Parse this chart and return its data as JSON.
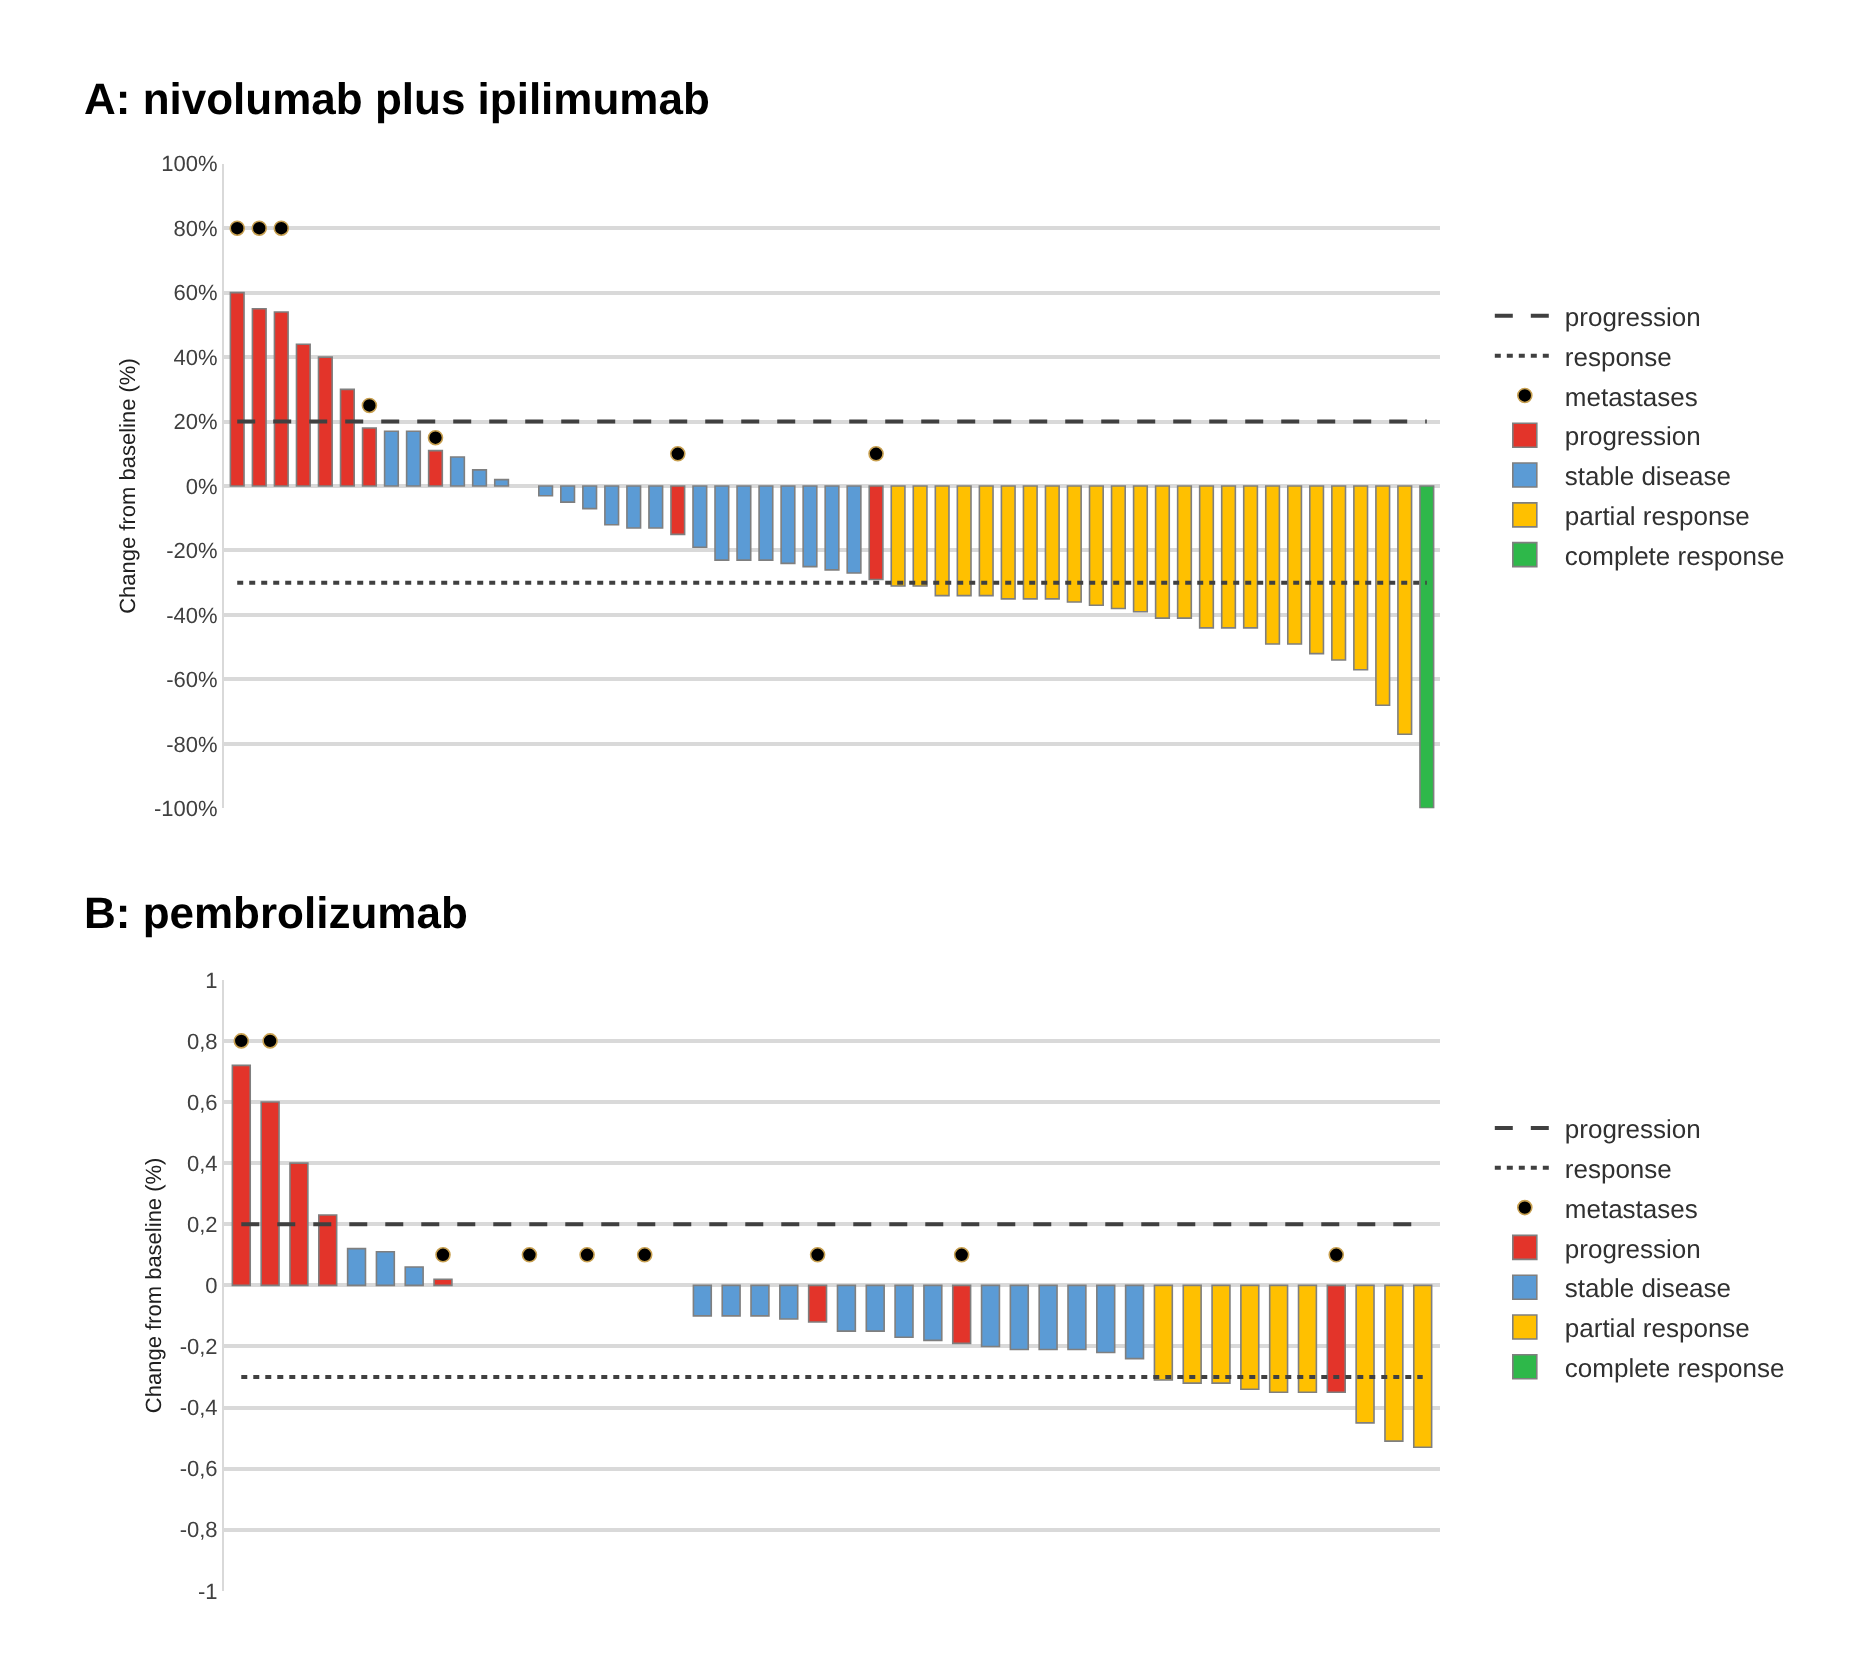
{
  "chart_data": [
    {
      "type": "bar",
      "title": "A: nivolumab plus ipilimumab",
      "ylabel": "Change from baseline (%)",
      "categories": [
        null,
        null,
        null,
        null,
        null,
        null,
        null,
        null,
        null,
        null,
        null,
        null,
        null,
        null,
        null,
        null,
        null,
        null,
        null,
        null,
        null,
        null,
        null,
        null,
        null,
        null,
        null,
        null,
        null,
        null,
        null,
        null,
        null,
        null,
        null,
        null,
        null,
        null,
        null,
        null,
        null,
        null,
        null,
        null,
        null,
        null,
        null,
        null,
        null,
        null,
        null,
        null,
        null,
        null,
        null
      ],
      "series": [
        {
          "name": "metastases",
          "type": "scatter",
          "color": "#000000",
          "values": [
            80,
            80,
            80,
            null,
            null,
            null,
            25,
            null,
            null,
            15,
            null,
            null,
            null,
            null,
            null,
            null,
            null,
            null,
            null,
            null,
            10,
            null,
            null,
            null,
            null,
            null,
            null,
            null,
            null,
            10,
            null,
            null,
            null,
            null,
            null,
            null,
            null,
            null,
            null,
            null,
            null,
            null,
            null,
            null,
            null,
            null,
            null,
            null,
            null,
            null,
            null,
            null,
            null,
            null,
            null
          ]
        },
        {
          "name": "progression",
          "color": "#e3342a",
          "values": [
            60,
            55,
            54,
            44,
            40,
            30,
            18,
            null,
            null,
            11,
            null,
            null,
            null,
            null,
            null,
            null,
            null,
            null,
            null,
            null,
            -15,
            null,
            null,
            null,
            null,
            null,
            null,
            null,
            null,
            -29,
            null,
            null,
            null,
            null,
            null,
            null,
            null,
            null,
            null,
            null,
            null,
            null,
            null,
            null,
            null,
            null,
            null,
            null,
            null,
            null,
            null,
            null,
            null,
            null,
            null
          ]
        },
        {
          "name": "stable disease",
          "color": "#5b9bd5",
          "values": [
            null,
            null,
            null,
            null,
            null,
            null,
            null,
            17,
            17,
            null,
            9,
            5,
            2,
            null,
            -3,
            -5,
            -7,
            -12,
            -13,
            -13,
            null,
            -19,
            -23,
            -23,
            -23,
            -24,
            -25,
            -26,
            -27,
            null,
            null,
            null,
            null,
            null,
            null,
            null,
            null,
            null,
            null,
            null,
            null,
            null,
            null,
            null,
            null,
            null,
            null,
            null,
            null,
            null,
            null,
            null,
            null,
            null,
            null
          ]
        },
        {
          "name": "partial response",
          "color": "#ffc000",
          "values": [
            null,
            null,
            null,
            null,
            null,
            null,
            null,
            null,
            null,
            null,
            null,
            null,
            null,
            null,
            null,
            null,
            null,
            null,
            null,
            null,
            null,
            null,
            null,
            null,
            null,
            null,
            null,
            null,
            null,
            null,
            -31,
            -31,
            -34,
            -34,
            -34,
            -35,
            -35,
            -35,
            -36,
            -37,
            -38,
            -39,
            -41,
            -41,
            -44,
            -44,
            -44,
            -49,
            -49,
            -52,
            -54,
            -57,
            -68,
            -77,
            null
          ]
        },
        {
          "name": "complete response",
          "color": "#2eb84a",
          "values": [
            null,
            null,
            null,
            null,
            null,
            null,
            null,
            null,
            null,
            null,
            null,
            null,
            null,
            null,
            null,
            null,
            null,
            null,
            null,
            null,
            null,
            null,
            null,
            null,
            null,
            null,
            null,
            null,
            null,
            null,
            null,
            null,
            null,
            null,
            null,
            null,
            null,
            null,
            null,
            null,
            null,
            null,
            null,
            null,
            null,
            null,
            null,
            null,
            null,
            null,
            null,
            null,
            null,
            null,
            -100
          ]
        }
      ],
      "ref_lines": [
        {
          "axis": "y",
          "value": 20,
          "label": "progression",
          "color": "#404040",
          "line_style": "dashed"
        },
        {
          "axis": "y",
          "value": -30,
          "label": "response",
          "color": "#404040",
          "line_style": "dotted"
        }
      ],
      "marker": "circle",
      "ylim": [
        -100,
        100
      ],
      "yticks": [
        {
          "value": 100,
          "label": "100%"
        },
        {
          "value": 80,
          "label": "80%"
        },
        {
          "value": 60,
          "label": "60%"
        },
        {
          "value": 40,
          "label": "40%"
        },
        {
          "value": 20,
          "label": "20%"
        },
        {
          "value": 0,
          "label": "0%"
        },
        {
          "value": -20,
          "label": "-20%"
        },
        {
          "value": -40,
          "label": "-40%"
        },
        {
          "value": -60,
          "label": "-60%"
        },
        {
          "value": -80,
          "label": "-80%"
        },
        {
          "value": -100,
          "label": "-100%"
        }
      ],
      "grid": "y",
      "legend": "right",
      "tick_labels": "y"
    },
    {
      "type": "bar",
      "title": "B: pembrolizumab",
      "ylabel": "Change from baseline (%)",
      "categories": [
        null,
        null,
        null,
        null,
        null,
        null,
        null,
        null,
        null,
        null,
        null,
        null,
        null,
        null,
        null,
        null,
        null,
        null,
        null,
        null,
        null,
        null,
        null,
        null,
        null,
        null,
        null,
        null,
        null,
        null,
        null,
        null,
        null,
        null,
        null,
        null,
        null,
        null,
        null,
        null,
        null,
        null
      ],
      "series": [
        {
          "name": "metastases",
          "type": "scatter",
          "color": "#000000",
          "values": [
            0.8,
            0.8,
            null,
            null,
            null,
            null,
            null,
            0.1,
            null,
            null,
            0.1,
            null,
            0.1,
            null,
            0.1,
            null,
            null,
            null,
            null,
            null,
            0.1,
            null,
            null,
            null,
            null,
            0.1,
            null,
            null,
            null,
            null,
            null,
            null,
            null,
            null,
            null,
            null,
            null,
            null,
            0.1,
            null,
            null,
            null
          ]
        },
        {
          "name": "progression",
          "color": "#e3342a",
          "values": [
            0.72,
            0.6,
            0.4,
            0.23,
            null,
            null,
            null,
            0.02,
            null,
            null,
            null,
            null,
            null,
            null,
            null,
            null,
            null,
            null,
            null,
            null,
            -0.12,
            null,
            null,
            null,
            null,
            -0.19,
            null,
            null,
            null,
            null,
            null,
            null,
            null,
            null,
            null,
            null,
            null,
            null,
            -0.35,
            null,
            null,
            null
          ]
        },
        {
          "name": "stable disease",
          "color": "#5b9bd5",
          "values": [
            null,
            null,
            null,
            null,
            0.12,
            0.11,
            0.06,
            null,
            null,
            null,
            null,
            null,
            null,
            null,
            null,
            null,
            -0.1,
            -0.1,
            -0.1,
            -0.11,
            null,
            -0.15,
            -0.15,
            -0.17,
            -0.18,
            null,
            -0.2,
            -0.21,
            -0.21,
            -0.21,
            -0.22,
            -0.24,
            null,
            null,
            null,
            null,
            null,
            null,
            null,
            null,
            null,
            null
          ]
        },
        {
          "name": "partial response",
          "color": "#ffc000",
          "values": [
            null,
            null,
            null,
            null,
            null,
            null,
            null,
            null,
            null,
            null,
            null,
            null,
            null,
            null,
            null,
            null,
            null,
            null,
            null,
            null,
            null,
            null,
            null,
            null,
            null,
            null,
            null,
            null,
            null,
            null,
            null,
            null,
            -0.31,
            -0.32,
            -0.32,
            -0.34,
            -0.35,
            -0.35,
            null,
            -0.45,
            -0.51,
            -0.53
          ]
        },
        {
          "name": "complete response",
          "color": "#2eb84a",
          "values": [
            null,
            null,
            null,
            null,
            null,
            null,
            null,
            null,
            null,
            null,
            null,
            null,
            null,
            null,
            null,
            null,
            null,
            null,
            null,
            null,
            null,
            null,
            null,
            null,
            null,
            null,
            null,
            null,
            null,
            null,
            null,
            null,
            null,
            null,
            null,
            null,
            null,
            null,
            null,
            null,
            null,
            null
          ]
        }
      ],
      "ref_lines": [
        {
          "axis": "y",
          "value": 0.2,
          "label": "progression",
          "color": "#404040",
          "line_style": "dashed"
        },
        {
          "axis": "y",
          "value": -0.3,
          "label": "response",
          "color": "#404040",
          "line_style": "dotted"
        }
      ],
      "marker": "circle",
      "ylim": [
        -1,
        1
      ],
      "yticks": [
        {
          "value": 1,
          "label": "1"
        },
        {
          "value": 0.8,
          "label": "0,8"
        },
        {
          "value": 0.6,
          "label": "0,6"
        },
        {
          "value": 0.4,
          "label": "0,4"
        },
        {
          "value": 0.2,
          "label": "0,2"
        },
        {
          "value": 0,
          "label": "0"
        },
        {
          "value": -0.2,
          "label": "-0,2"
        },
        {
          "value": -0.4,
          "label": "-0,4"
        },
        {
          "value": -0.6,
          "label": "-0,6"
        },
        {
          "value": -0.8,
          "label": "-0,8"
        },
        {
          "value": -1,
          "label": "-1"
        }
      ],
      "grid": "y",
      "legend": "right",
      "tick_labels": "y"
    }
  ]
}
